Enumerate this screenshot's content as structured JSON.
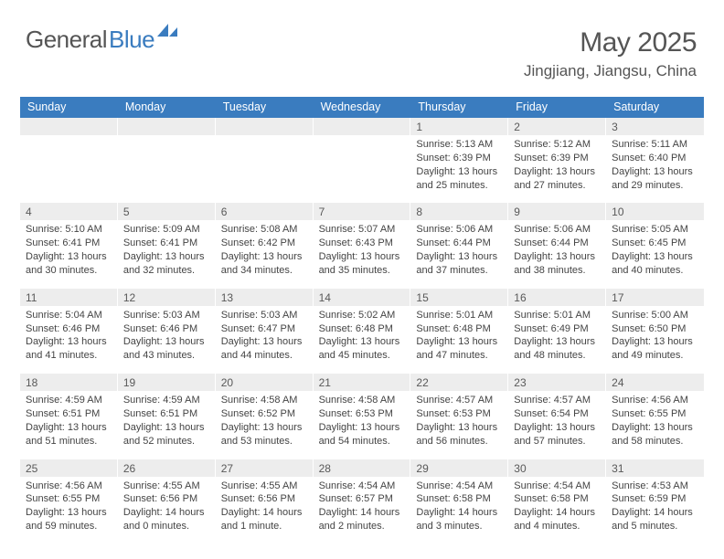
{
  "logo": {
    "part1": "General",
    "part2": "Blue"
  },
  "title": "May 2025",
  "location": "Jingjiang, Jiangsu, China",
  "colors": {
    "brand": "#3a7cbf",
    "headerbg": "#3a7cbf",
    "numbg": "#ededed"
  },
  "weekdays": [
    "Sunday",
    "Monday",
    "Tuesday",
    "Wednesday",
    "Thursday",
    "Friday",
    "Saturday"
  ],
  "cells": [
    {
      "n": "",
      "l": []
    },
    {
      "n": "",
      "l": []
    },
    {
      "n": "",
      "l": []
    },
    {
      "n": "",
      "l": []
    },
    {
      "n": "1",
      "l": [
        "Sunrise: 5:13 AM",
        "Sunset: 6:39 PM",
        "Daylight: 13 hours",
        "and 25 minutes."
      ]
    },
    {
      "n": "2",
      "l": [
        "Sunrise: 5:12 AM",
        "Sunset: 6:39 PM",
        "Daylight: 13 hours",
        "and 27 minutes."
      ]
    },
    {
      "n": "3",
      "l": [
        "Sunrise: 5:11 AM",
        "Sunset: 6:40 PM",
        "Daylight: 13 hours",
        "and 29 minutes."
      ]
    },
    {
      "n": "4",
      "l": [
        "Sunrise: 5:10 AM",
        "Sunset: 6:41 PM",
        "Daylight: 13 hours",
        "and 30 minutes."
      ]
    },
    {
      "n": "5",
      "l": [
        "Sunrise: 5:09 AM",
        "Sunset: 6:41 PM",
        "Daylight: 13 hours",
        "and 32 minutes."
      ]
    },
    {
      "n": "6",
      "l": [
        "Sunrise: 5:08 AM",
        "Sunset: 6:42 PM",
        "Daylight: 13 hours",
        "and 34 minutes."
      ]
    },
    {
      "n": "7",
      "l": [
        "Sunrise: 5:07 AM",
        "Sunset: 6:43 PM",
        "Daylight: 13 hours",
        "and 35 minutes."
      ]
    },
    {
      "n": "8",
      "l": [
        "Sunrise: 5:06 AM",
        "Sunset: 6:44 PM",
        "Daylight: 13 hours",
        "and 37 minutes."
      ]
    },
    {
      "n": "9",
      "l": [
        "Sunrise: 5:06 AM",
        "Sunset: 6:44 PM",
        "Daylight: 13 hours",
        "and 38 minutes."
      ]
    },
    {
      "n": "10",
      "l": [
        "Sunrise: 5:05 AM",
        "Sunset: 6:45 PM",
        "Daylight: 13 hours",
        "and 40 minutes."
      ]
    },
    {
      "n": "11",
      "l": [
        "Sunrise: 5:04 AM",
        "Sunset: 6:46 PM",
        "Daylight: 13 hours",
        "and 41 minutes."
      ]
    },
    {
      "n": "12",
      "l": [
        "Sunrise: 5:03 AM",
        "Sunset: 6:46 PM",
        "Daylight: 13 hours",
        "and 43 minutes."
      ]
    },
    {
      "n": "13",
      "l": [
        "Sunrise: 5:03 AM",
        "Sunset: 6:47 PM",
        "Daylight: 13 hours",
        "and 44 minutes."
      ]
    },
    {
      "n": "14",
      "l": [
        "Sunrise: 5:02 AM",
        "Sunset: 6:48 PM",
        "Daylight: 13 hours",
        "and 45 minutes."
      ]
    },
    {
      "n": "15",
      "l": [
        "Sunrise: 5:01 AM",
        "Sunset: 6:48 PM",
        "Daylight: 13 hours",
        "and 47 minutes."
      ]
    },
    {
      "n": "16",
      "l": [
        "Sunrise: 5:01 AM",
        "Sunset: 6:49 PM",
        "Daylight: 13 hours",
        "and 48 minutes."
      ]
    },
    {
      "n": "17",
      "l": [
        "Sunrise: 5:00 AM",
        "Sunset: 6:50 PM",
        "Daylight: 13 hours",
        "and 49 minutes."
      ]
    },
    {
      "n": "18",
      "l": [
        "Sunrise: 4:59 AM",
        "Sunset: 6:51 PM",
        "Daylight: 13 hours",
        "and 51 minutes."
      ]
    },
    {
      "n": "19",
      "l": [
        "Sunrise: 4:59 AM",
        "Sunset: 6:51 PM",
        "Daylight: 13 hours",
        "and 52 minutes."
      ]
    },
    {
      "n": "20",
      "l": [
        "Sunrise: 4:58 AM",
        "Sunset: 6:52 PM",
        "Daylight: 13 hours",
        "and 53 minutes."
      ]
    },
    {
      "n": "21",
      "l": [
        "Sunrise: 4:58 AM",
        "Sunset: 6:53 PM",
        "Daylight: 13 hours",
        "and 54 minutes."
      ]
    },
    {
      "n": "22",
      "l": [
        "Sunrise: 4:57 AM",
        "Sunset: 6:53 PM",
        "Daylight: 13 hours",
        "and 56 minutes."
      ]
    },
    {
      "n": "23",
      "l": [
        "Sunrise: 4:57 AM",
        "Sunset: 6:54 PM",
        "Daylight: 13 hours",
        "and 57 minutes."
      ]
    },
    {
      "n": "24",
      "l": [
        "Sunrise: 4:56 AM",
        "Sunset: 6:55 PM",
        "Daylight: 13 hours",
        "and 58 minutes."
      ]
    },
    {
      "n": "25",
      "l": [
        "Sunrise: 4:56 AM",
        "Sunset: 6:55 PM",
        "Daylight: 13 hours",
        "and 59 minutes."
      ]
    },
    {
      "n": "26",
      "l": [
        "Sunrise: 4:55 AM",
        "Sunset: 6:56 PM",
        "Daylight: 14 hours",
        "and 0 minutes."
      ]
    },
    {
      "n": "27",
      "l": [
        "Sunrise: 4:55 AM",
        "Sunset: 6:56 PM",
        "Daylight: 14 hours",
        "and 1 minute."
      ]
    },
    {
      "n": "28",
      "l": [
        "Sunrise: 4:54 AM",
        "Sunset: 6:57 PM",
        "Daylight: 14 hours",
        "and 2 minutes."
      ]
    },
    {
      "n": "29",
      "l": [
        "Sunrise: 4:54 AM",
        "Sunset: 6:58 PM",
        "Daylight: 14 hours",
        "and 3 minutes."
      ]
    },
    {
      "n": "30",
      "l": [
        "Sunrise: 4:54 AM",
        "Sunset: 6:58 PM",
        "Daylight: 14 hours",
        "and 4 minutes."
      ]
    },
    {
      "n": "31",
      "l": [
        "Sunrise: 4:53 AM",
        "Sunset: 6:59 PM",
        "Daylight: 14 hours",
        "and 5 minutes."
      ]
    }
  ]
}
